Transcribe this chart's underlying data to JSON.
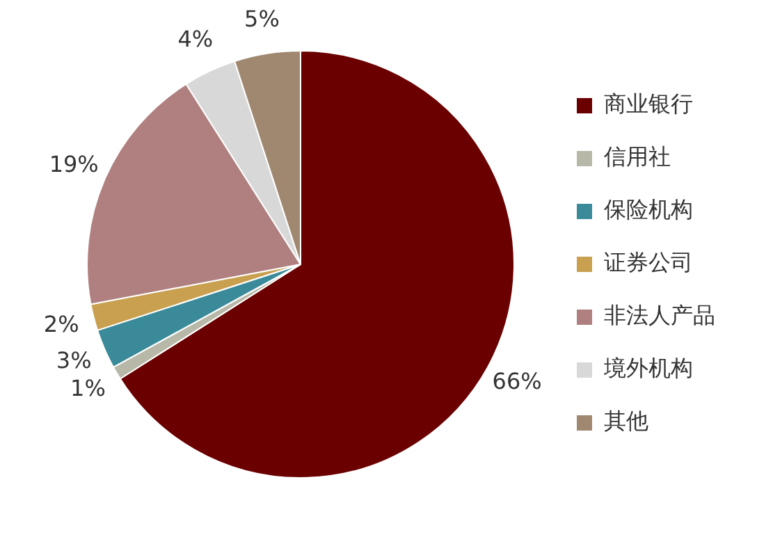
{
  "chart_data": {
    "type": "pie",
    "categories": [
      "商业银行",
      "信用社",
      "保险机构",
      "证券公司",
      "非法人产品",
      "境外机构",
      "其他"
    ],
    "values": [
      66,
      1,
      3,
      2,
      19,
      4,
      5
    ],
    "colors": [
      "#6b0000",
      "#b8b8a8",
      "#3a8a9a",
      "#c8a050",
      "#b08080",
      "#d8d8d8",
      "#a08870"
    ],
    "value_labels": [
      "66%",
      "1%",
      "3%",
      "2%",
      "19%",
      "4%",
      "5%"
    ],
    "legend": "right"
  }
}
